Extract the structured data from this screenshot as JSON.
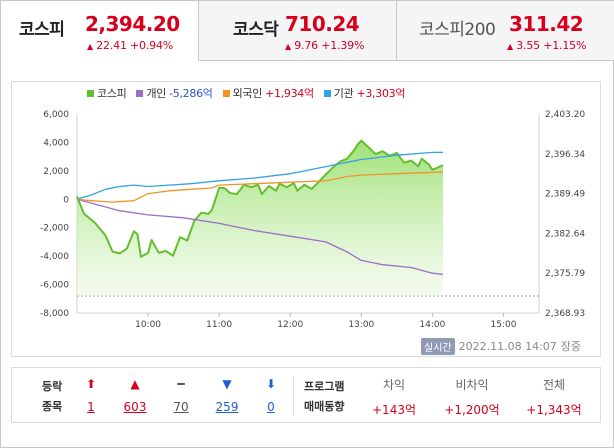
{
  "tabs": [
    {
      "name": "코스피",
      "price": "2,394.20",
      "change": "22.41 +0.94%",
      "arrow": "▲"
    },
    {
      "name": "코스닥",
      "price": "710.24",
      "change": "9.76 +1.39%",
      "arrow": "▲"
    },
    {
      "name": "코스피200",
      "price": "311.42",
      "change": "3.55 +1.15%",
      "arrow": "▲"
    }
  ],
  "legend": [
    {
      "name": "코스피",
      "value": "",
      "color": "#63bf2e"
    },
    {
      "name": "개인",
      "value": "-5,286억",
      "color": "#9b6fc8"
    },
    {
      "name": "외국인",
      "value": "+1,934억",
      "color": "#f0952a"
    },
    {
      "name": "기관",
      "value": "+3,303억",
      "color": "#34a1e5"
    }
  ],
  "chart_data": {
    "type": "line",
    "x_ticks": [
      "10:00",
      "11:00",
      "12:00",
      "13:00",
      "14:00",
      "15:00"
    ],
    "x_range": [
      9.0,
      15.5
    ],
    "left_axis": {
      "ticks": [
        "6,000",
        "4,000",
        "2,000",
        "0",
        "-2,000",
        "-4,000",
        "-6,000",
        "-8,000"
      ],
      "range": [
        -8000,
        6000
      ]
    },
    "right_axis": {
      "ticks": [
        "2,403.20",
        "2,396.34",
        "2,389.49",
        "2,382.64",
        "2,375.79",
        "2,368.93"
      ],
      "range": [
        2368.93,
        2403.2
      ]
    },
    "reference_line_left": -6800,
    "series": [
      {
        "name": "코스피",
        "axis": "right",
        "color": "#63bf2e",
        "points": [
          [
            9.0,
            2389.0
          ],
          [
            9.1,
            2386.0
          ],
          [
            9.25,
            2384.5
          ],
          [
            9.4,
            2382.3
          ],
          [
            9.5,
            2379.5
          ],
          [
            9.6,
            2379.2
          ],
          [
            9.7,
            2380.0
          ],
          [
            9.8,
            2383.0
          ],
          [
            9.85,
            2382.5
          ],
          [
            9.9,
            2378.6
          ],
          [
            10.0,
            2379.3
          ],
          [
            10.05,
            2381.5
          ],
          [
            10.15,
            2379.3
          ],
          [
            10.25,
            2379.6
          ],
          [
            10.35,
            2378.8
          ],
          [
            10.45,
            2382.0
          ],
          [
            10.55,
            2381.4
          ],
          [
            10.65,
            2384.8
          ],
          [
            10.75,
            2386.2
          ],
          [
            10.85,
            2386.0
          ],
          [
            10.9,
            2386.7
          ],
          [
            11.0,
            2390.5
          ],
          [
            11.08,
            2390.4
          ],
          [
            11.15,
            2389.6
          ],
          [
            11.25,
            2389.4
          ],
          [
            11.35,
            2391.0
          ],
          [
            11.45,
            2390.6
          ],
          [
            11.55,
            2391.0
          ],
          [
            11.6,
            2389.4
          ],
          [
            11.7,
            2390.8
          ],
          [
            11.8,
            2390.0
          ],
          [
            11.85,
            2391.2
          ],
          [
            11.95,
            2390.6
          ],
          [
            12.05,
            2391.3
          ],
          [
            12.1,
            2390.0
          ],
          [
            12.2,
            2391.0
          ],
          [
            12.3,
            2390.3
          ],
          [
            12.4,
            2391.5
          ],
          [
            12.5,
            2392.8
          ],
          [
            12.6,
            2394.0
          ],
          [
            12.7,
            2395.0
          ],
          [
            12.8,
            2395.5
          ],
          [
            12.9,
            2397.0
          ],
          [
            12.95,
            2398.0
          ],
          [
            13.0,
            2398.6
          ],
          [
            13.1,
            2397.5
          ],
          [
            13.2,
            2396.3
          ],
          [
            13.3,
            2396.8
          ],
          [
            13.4,
            2396.0
          ],
          [
            13.5,
            2396.5
          ],
          [
            13.6,
            2394.8
          ],
          [
            13.7,
            2395.2
          ],
          [
            13.8,
            2394.2
          ],
          [
            13.85,
            2395.5
          ],
          [
            13.95,
            2394.5
          ],
          [
            14.0,
            2393.6
          ],
          [
            14.08,
            2394.0
          ],
          [
            14.15,
            2394.4
          ]
        ]
      },
      {
        "name": "개인",
        "axis": "left",
        "color": "#9b6fc8",
        "points": [
          [
            9.0,
            0
          ],
          [
            9.3,
            -400
          ],
          [
            9.6,
            -800
          ],
          [
            10.0,
            -1100
          ],
          [
            10.5,
            -1300
          ],
          [
            11.0,
            -1700
          ],
          [
            11.5,
            -2200
          ],
          [
            12.0,
            -2600
          ],
          [
            12.5,
            -3000
          ],
          [
            12.8,
            -3700
          ],
          [
            13.0,
            -4300
          ],
          [
            13.3,
            -4600
          ],
          [
            13.7,
            -4800
          ],
          [
            14.0,
            -5200
          ],
          [
            14.15,
            -5286
          ]
        ]
      },
      {
        "name": "외국인",
        "axis": "left",
        "color": "#f0952a",
        "points": [
          [
            9.0,
            0
          ],
          [
            9.2,
            -100
          ],
          [
            9.5,
            -200
          ],
          [
            9.8,
            -100
          ],
          [
            10.0,
            400
          ],
          [
            10.3,
            600
          ],
          [
            10.6,
            700
          ],
          [
            10.9,
            800
          ],
          [
            11.0,
            1000
          ],
          [
            11.5,
            1100
          ],
          [
            12.0,
            1200
          ],
          [
            12.5,
            1300
          ],
          [
            12.8,
            1600
          ],
          [
            13.0,
            1700
          ],
          [
            13.5,
            1800
          ],
          [
            14.0,
            1900
          ],
          [
            14.15,
            1934
          ]
        ]
      },
      {
        "name": "기관",
        "axis": "left",
        "color": "#34a1e5",
        "points": [
          [
            9.0,
            0
          ],
          [
            9.2,
            300
          ],
          [
            9.4,
            700
          ],
          [
            9.6,
            900
          ],
          [
            9.8,
            1000
          ],
          [
            10.0,
            900
          ],
          [
            10.3,
            1000
          ],
          [
            10.6,
            1100
          ],
          [
            11.0,
            1300
          ],
          [
            11.5,
            1500
          ],
          [
            12.0,
            1800
          ],
          [
            12.5,
            2300
          ],
          [
            12.8,
            2600
          ],
          [
            13.0,
            2800
          ],
          [
            13.5,
            3100
          ],
          [
            14.0,
            3300
          ],
          [
            14.15,
            3303
          ]
        ]
      }
    ]
  },
  "time": {
    "badge": "실시간",
    "datetime": "2022.11.08 14:07",
    "status": "장중"
  },
  "breadth": {
    "label_top": "등락",
    "label_bottom": "종목",
    "items": [
      {
        "arrow": "⬆",
        "count": "1",
        "kind": "up"
      },
      {
        "arrow": "▲",
        "count": "603",
        "kind": "up"
      },
      {
        "arrow": "━",
        "count": "70",
        "kind": "flat"
      },
      {
        "arrow": "▼",
        "count": "259",
        "kind": "down"
      },
      {
        "arrow": "⬇",
        "count": "0",
        "kind": "down"
      }
    ]
  },
  "program": {
    "label_top": "프로그램",
    "label_bottom": "매매동향",
    "cols": [
      {
        "header": "차익",
        "value": "+143억"
      },
      {
        "header": "비차익",
        "value": "+1,200억"
      },
      {
        "header": "전체",
        "value": "+1,343억"
      }
    ]
  }
}
